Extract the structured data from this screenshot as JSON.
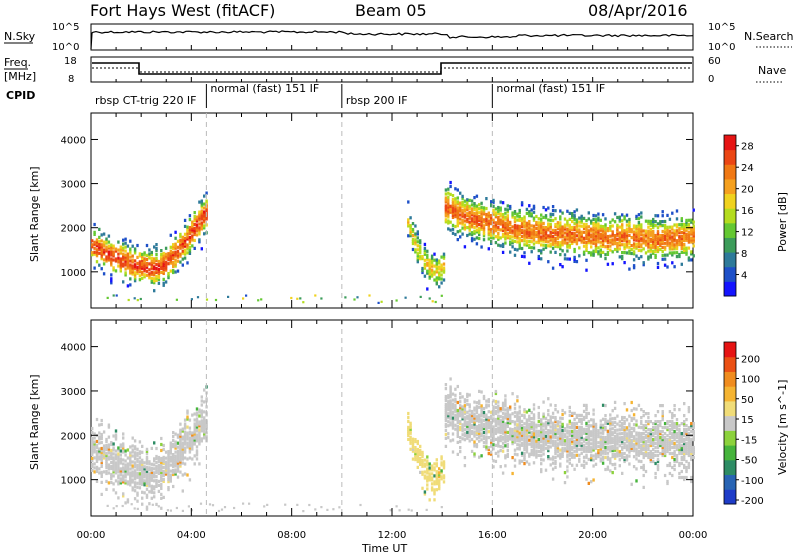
{
  "header": {
    "title": "Fort Hays West (fitACF)",
    "beam": "Beam 05",
    "date": "08/Apr/2016"
  },
  "top_panels": {
    "nsky_label": "N.Sky",
    "nsky_ticks": [
      "10^5",
      "10^0"
    ],
    "nsearch_label": "N.Search",
    "nsearch_ticks": [
      "10^5",
      "10^0"
    ],
    "freq_label_1": "Freq.",
    "freq_label_2": "[MHz]",
    "freq_ticks": [
      "18",
      "8"
    ],
    "nave_label": "Nave",
    "nave_ticks": [
      "60",
      "0"
    ],
    "cpid_label": "CPID",
    "cpid_segments": [
      {
        "text": "rbsp CT-trig 220 IF",
        "start_h": 0
      },
      {
        "text": "normal (fast) 151 IF",
        "start_h": 4.6
      },
      {
        "text": "rbsp 200 IF",
        "start_h": 10.0
      },
      {
        "text": "normal (fast) 151 IF",
        "start_h": 16.0
      }
    ]
  },
  "colors": {
    "power_scale": [
      "#1414ff",
      "#1e50c8",
      "#2e7a9a",
      "#3c9c5a",
      "#64c832",
      "#b4dc1e",
      "#f0d21e",
      "#f5a01e",
      "#f07814",
      "#eb4614",
      "#e61414"
    ],
    "velocity_scale": [
      "#1e3cc8",
      "#2864b4",
      "#2d8c64",
      "#46b43c",
      "#8cd23c",
      "#c8c8c8",
      "#f0dc78",
      "#f5b432",
      "#f08c1e",
      "#eb5014",
      "#e61414"
    ]
  },
  "chart_data": [
    {
      "type": "heatmap",
      "name": "Power",
      "xlabel": "",
      "ylabel": "Slant Range [km]",
      "x_ticks": [
        "00:00",
        "04:00",
        "08:00",
        "12:00",
        "16:00",
        "20:00",
        "00:00"
      ],
      "y_ticks": [
        "1000",
        "2000",
        "3000",
        "4000"
      ],
      "xlim": [
        0,
        24
      ],
      "ylim": [
        180,
        4600
      ],
      "colorbar_label": "Power [dB]",
      "colorbar_ticks": [
        "4",
        "8",
        "12",
        "16",
        "20",
        "24",
        "28"
      ],
      "colorbar_range": [
        0,
        30
      ],
      "regions": [
        {
          "t0": 0.0,
          "t1": 4.6,
          "core": [
            1650,
            1500,
            1400,
            1300,
            1200,
            1150,
            1100,
            1200,
            1450,
            1750,
            2100,
            2400
          ],
          "w": 260,
          "val": 26,
          "noise": 0.55
        },
        {
          "t0": 12.6,
          "t1": 14.1,
          "core": [
            2200,
            1800,
            1500,
            1300,
            1150,
            1050,
            1100,
            1250
          ],
          "w": 220,
          "val": 18,
          "noise": 0.7
        },
        {
          "t0": 14.1,
          "t1": 24.0,
          "core": [
            2500,
            2300,
            2200,
            2100,
            2000,
            1950,
            1900,
            1880,
            1850,
            1800,
            1850,
            1800,
            1780,
            1800,
            1820
          ],
          "w": 300,
          "val": 24,
          "noise": 0.5
        }
      ]
    },
    {
      "type": "heatmap",
      "name": "Velocity",
      "xlabel": "Time UT",
      "ylabel": "Slant Range [km]",
      "x_ticks": [
        "00:00",
        "04:00",
        "08:00",
        "12:00",
        "16:00",
        "20:00",
        "00:00"
      ],
      "y_ticks": [
        "1000",
        "2000",
        "3000",
        "4000"
      ],
      "xlim": [
        0,
        24
      ],
      "ylim": [
        180,
        4600
      ],
      "colorbar_label": "Velocity [m s^-1]",
      "colorbar_ticks": [
        "200",
        "100",
        "50",
        "15",
        "-15",
        "-50",
        "-100",
        "-200"
      ],
      "colorbar_range": [
        -250,
        250
      ],
      "regions": [
        {
          "t0": 0.0,
          "t1": 4.6,
          "core": [
            1750,
            1600,
            1450,
            1350,
            1250,
            1200,
            1150,
            1250,
            1500,
            1800,
            2100,
            2400
          ],
          "w": 350,
          "val": 0,
          "noise": 0.6
        },
        {
          "t0": 12.6,
          "t1": 14.1,
          "core": [
            2200,
            1800,
            1500,
            1300,
            1150,
            1050,
            1100,
            1250
          ],
          "w": 220,
          "val": 40,
          "noise": 0.7
        },
        {
          "t0": 14.1,
          "t1": 24.0,
          "core": [
            2600,
            2400,
            2300,
            2200,
            2100,
            2050,
            2000,
            1950,
            1950,
            1900,
            1950,
            1900,
            1900,
            1900,
            1900
          ],
          "w": 400,
          "val": 0,
          "noise": 0.5
        }
      ]
    }
  ]
}
